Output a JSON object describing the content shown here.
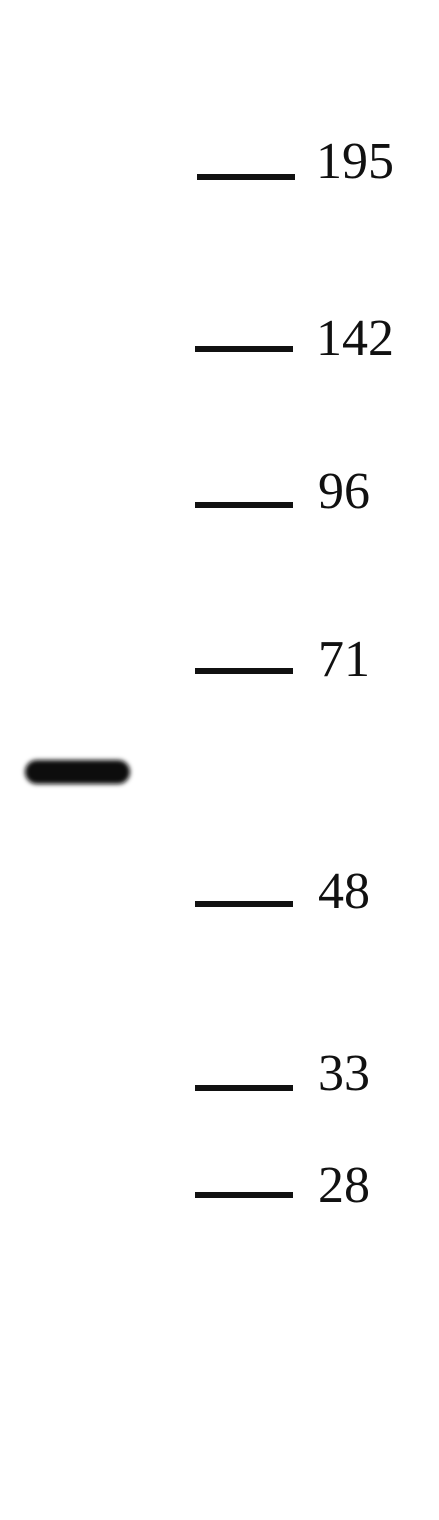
{
  "markers": [
    {
      "label": "195"
    },
    {
      "label": "142"
    },
    {
      "label": "96"
    },
    {
      "label": "71"
    },
    {
      "label": "48"
    },
    {
      "label": "33"
    },
    {
      "label": "28"
    }
  ]
}
